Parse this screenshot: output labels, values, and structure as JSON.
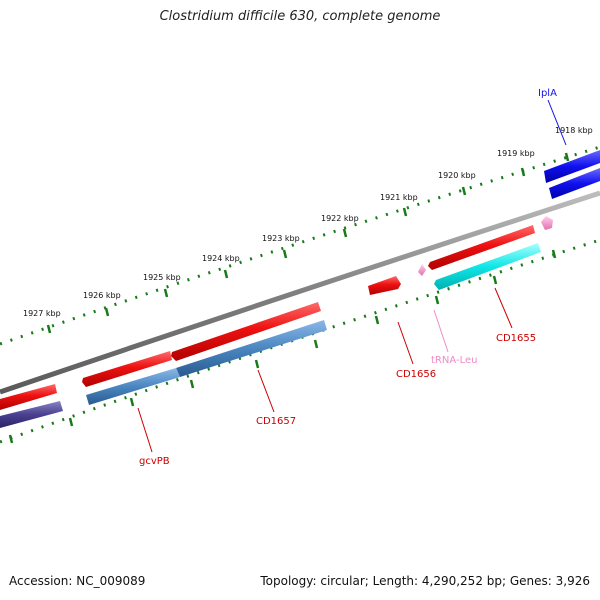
{
  "title": "Clostridium difficile 630, complete genome",
  "footer": {
    "accession": "Accession: NC_009089",
    "summary": "Topology: circular; Length: 4,290,252 bp; Genes: 3,926"
  },
  "colors": {
    "backbone": "#7f7f7f",
    "ticks": "#1a7a1a",
    "forward_gene": "#e8141b",
    "reverse_gene_cds_a": "#3fa9ff",
    "reverse_gene_cds_b": "#00e5e5",
    "trna": "#f08ac8",
    "iplA": "#1414e6"
  },
  "kbp_labels": [
    {
      "text": "1918 kbp"
    },
    {
      "text": "1919 kbp"
    },
    {
      "text": "1920 kbp"
    },
    {
      "text": "1921 kbp"
    },
    {
      "text": "1922 kbp"
    },
    {
      "text": "1923 kbp"
    },
    {
      "text": "1924 kbp"
    },
    {
      "text": "1925 kbp"
    },
    {
      "text": "1926 kbp"
    },
    {
      "text": "1927 kbp"
    }
  ],
  "gene_labels": {
    "iplA": "IplA",
    "cd1655": "CD1655",
    "trna_leu": "tRNA-Leu",
    "cd1656": "CD1656",
    "cd1657": "CD1657",
    "gcvpb": "gcvPB"
  }
}
